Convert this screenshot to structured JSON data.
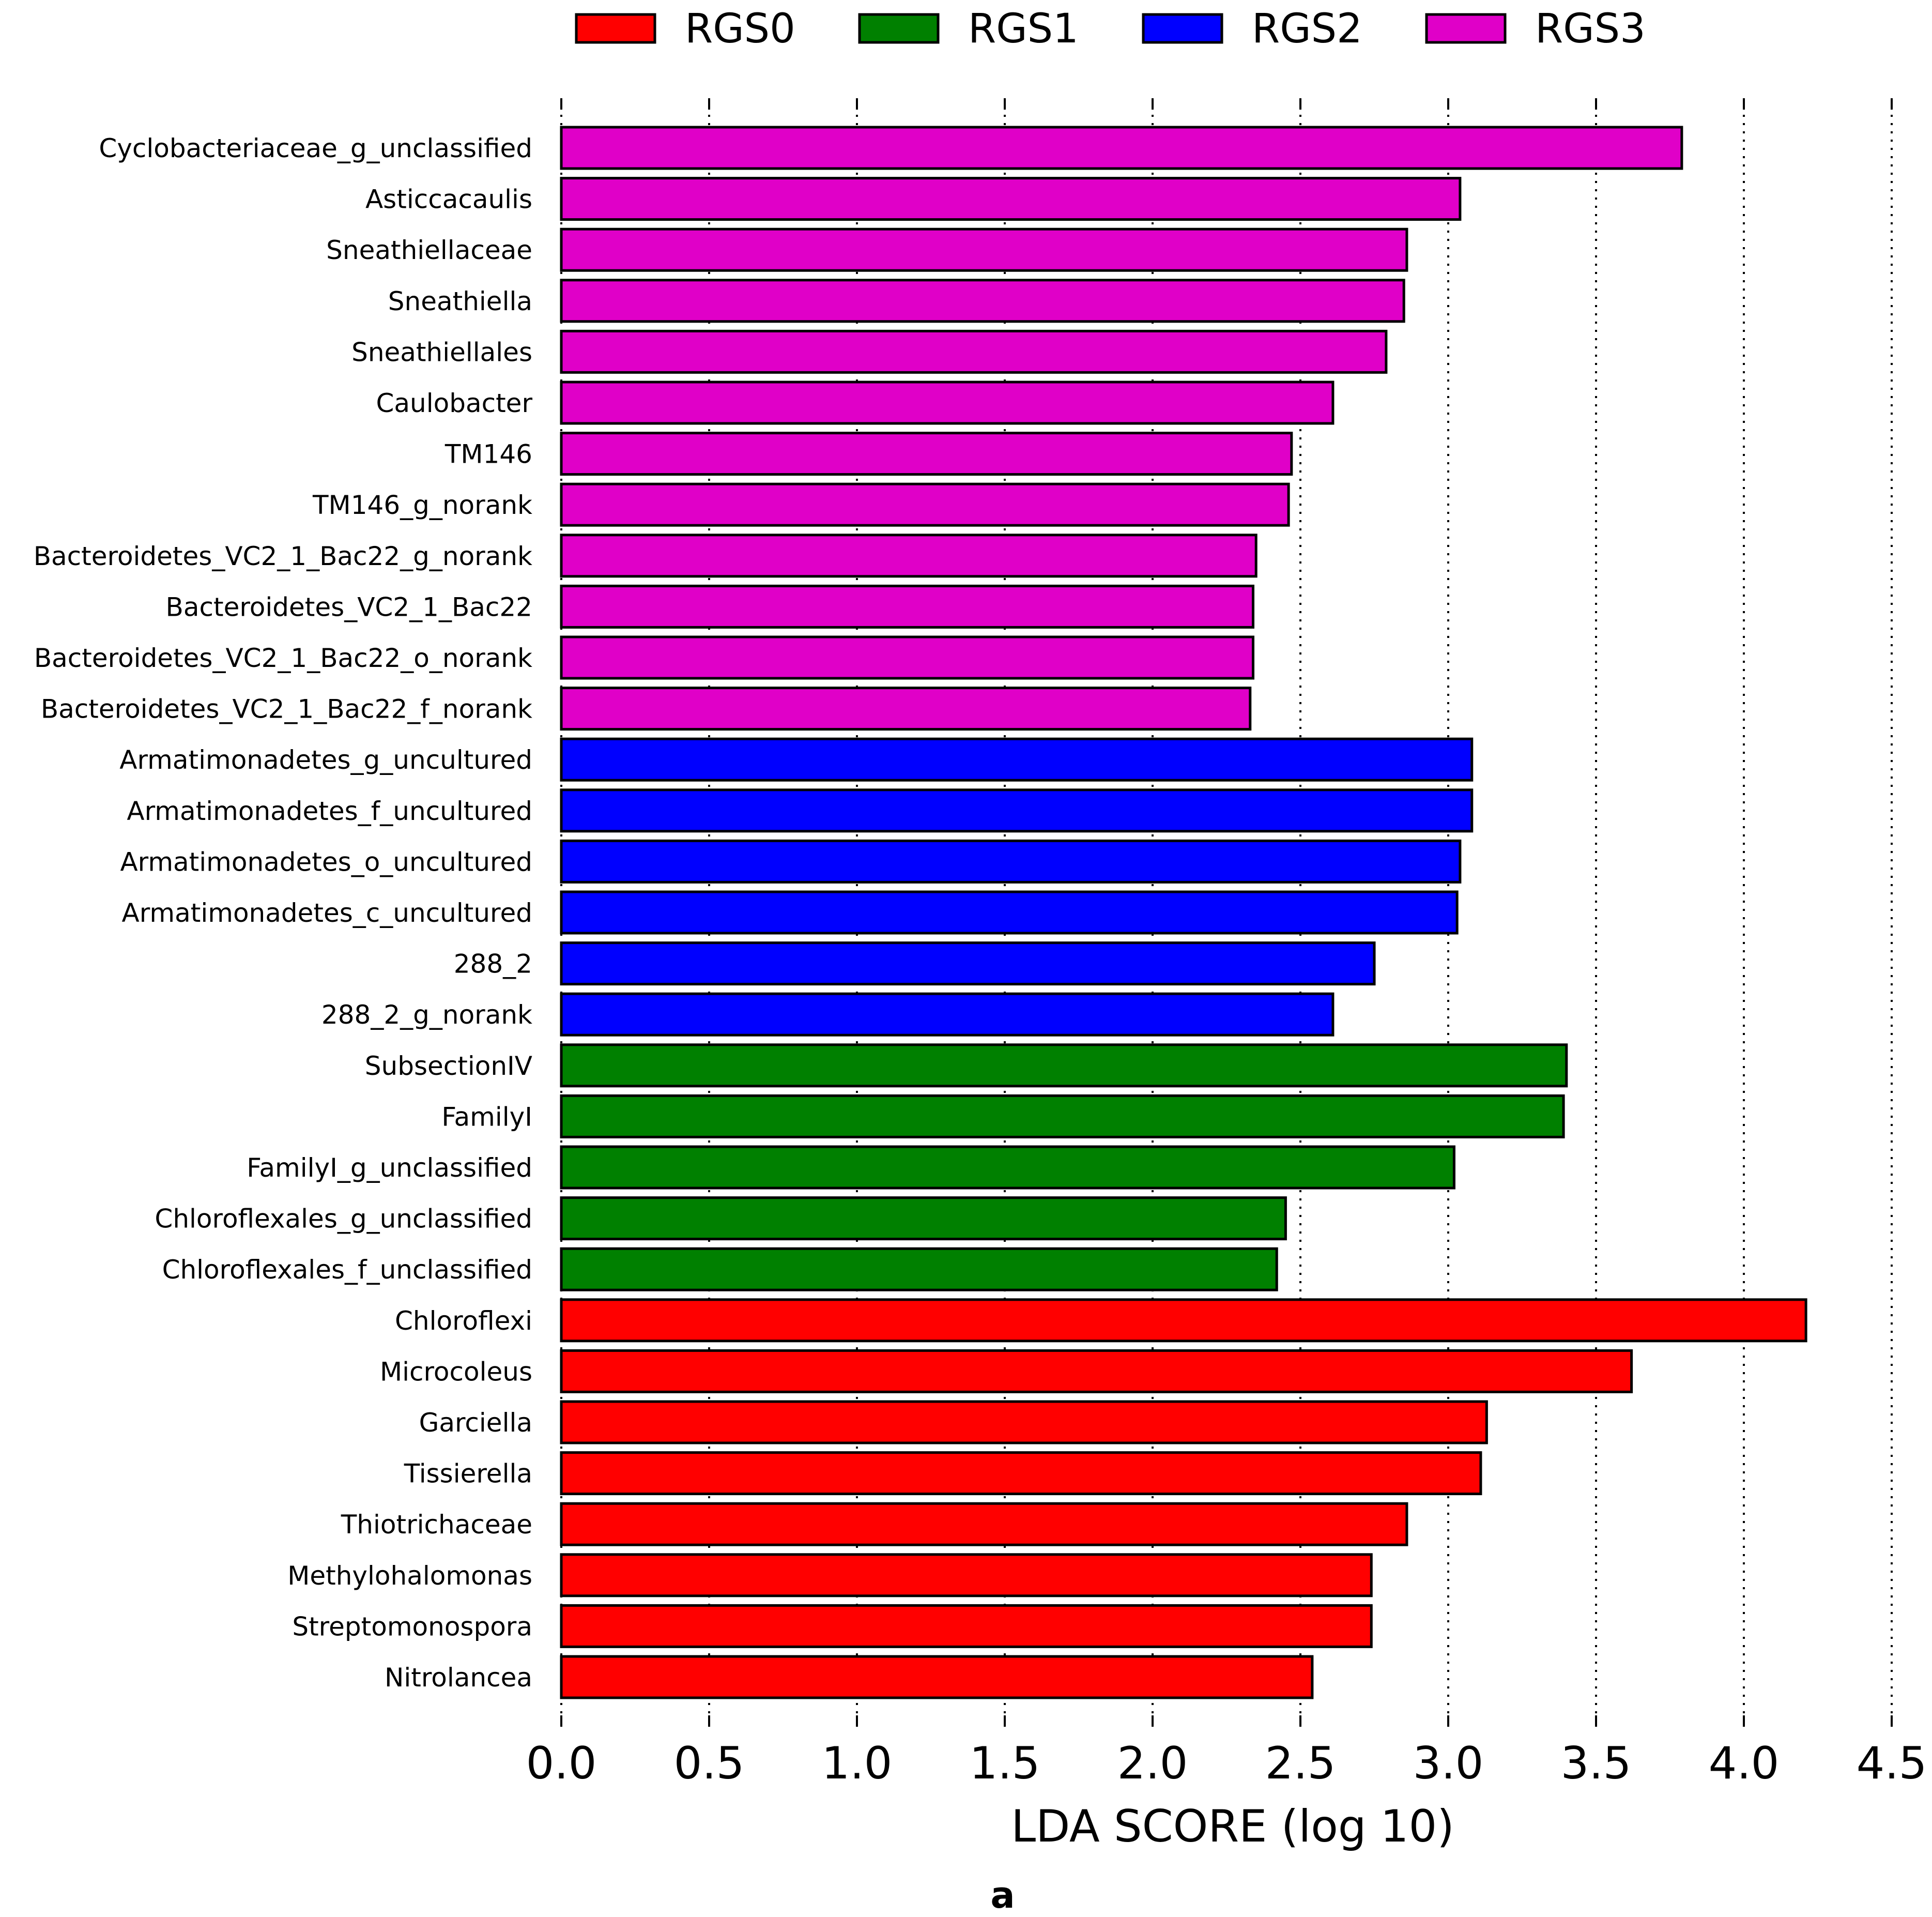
{
  "chart_data": {
    "type": "bar",
    "orientation": "horizontal",
    "xlabel": "LDA SCORE (log 10)",
    "panel_label": "a",
    "xlim": [
      0,
      4.5
    ],
    "xticks": [
      "0.0",
      "0.5",
      "1.0",
      "1.5",
      "2.0",
      "2.5",
      "3.0",
      "3.5",
      "4.0",
      "4.5"
    ],
    "grid": true,
    "legend": [
      {
        "name": "RGS0",
        "color": "#ff0000"
      },
      {
        "name": "RGS1",
        "color": "#008000"
      },
      {
        "name": "RGS2",
        "color": "#0000ff"
      },
      {
        "name": "RGS3",
        "color": "#e000c8"
      }
    ],
    "bars": [
      {
        "label": "Cyclobacteriaceae_g_unclassified",
        "value": 3.79,
        "group": "RGS3"
      },
      {
        "label": "Asticcacaulis",
        "value": 3.04,
        "group": "RGS3"
      },
      {
        "label": "Sneathiellaceae",
        "value": 2.86,
        "group": "RGS3"
      },
      {
        "label": "Sneathiella",
        "value": 2.85,
        "group": "RGS3"
      },
      {
        "label": "Sneathiellales",
        "value": 2.79,
        "group": "RGS3"
      },
      {
        "label": "Caulobacter",
        "value": 2.61,
        "group": "RGS3"
      },
      {
        "label": "TM146",
        "value": 2.47,
        "group": "RGS3"
      },
      {
        "label": "TM146_g_norank",
        "value": 2.46,
        "group": "RGS3"
      },
      {
        "label": "Bacteroidetes_VC2_1_Bac22_g_norank",
        "value": 2.35,
        "group": "RGS3"
      },
      {
        "label": "Bacteroidetes_VC2_1_Bac22",
        "value": 2.34,
        "group": "RGS3"
      },
      {
        "label": "Bacteroidetes_VC2_1_Bac22_o_norank",
        "value": 2.34,
        "group": "RGS3"
      },
      {
        "label": "Bacteroidetes_VC2_1_Bac22_f_norank",
        "value": 2.33,
        "group": "RGS3"
      },
      {
        "label": "Armatimonadetes_g_uncultured",
        "value": 3.08,
        "group": "RGS2"
      },
      {
        "label": "Armatimonadetes_f_uncultured",
        "value": 3.08,
        "group": "RGS2"
      },
      {
        "label": "Armatimonadetes_o_uncultured",
        "value": 3.04,
        "group": "RGS2"
      },
      {
        "label": "Armatimonadetes_c_uncultured",
        "value": 3.03,
        "group": "RGS2"
      },
      {
        "label": "288_2",
        "value": 2.75,
        "group": "RGS2"
      },
      {
        "label": "288_2_g_norank",
        "value": 2.61,
        "group": "RGS2"
      },
      {
        "label": "SubsectionIV",
        "value": 3.4,
        "group": "RGS1"
      },
      {
        "label": "FamilyI",
        "value": 3.39,
        "group": "RGS1"
      },
      {
        "label": "FamilyI_g_unclassified",
        "value": 3.02,
        "group": "RGS1"
      },
      {
        "label": "Chloroflexales_g_unclassified",
        "value": 2.45,
        "group": "RGS1"
      },
      {
        "label": "Chloroflexales_f_unclassified",
        "value": 2.42,
        "group": "RGS1"
      },
      {
        "label": "Chloroflexi",
        "value": 4.21,
        "group": "RGS0"
      },
      {
        "label": "Microcoleus",
        "value": 3.62,
        "group": "RGS0"
      },
      {
        "label": "Garciella",
        "value": 3.13,
        "group": "RGS0"
      },
      {
        "label": "Tissierella",
        "value": 3.11,
        "group": "RGS0"
      },
      {
        "label": "Thiotrichaceae",
        "value": 2.86,
        "group": "RGS0"
      },
      {
        "label": "Methylohalomonas",
        "value": 2.74,
        "group": "RGS0"
      },
      {
        "label": "Streptomonospora",
        "value": 2.74,
        "group": "RGS0"
      },
      {
        "label": "Nitrolancea",
        "value": 2.54,
        "group": "RGS0"
      }
    ]
  }
}
